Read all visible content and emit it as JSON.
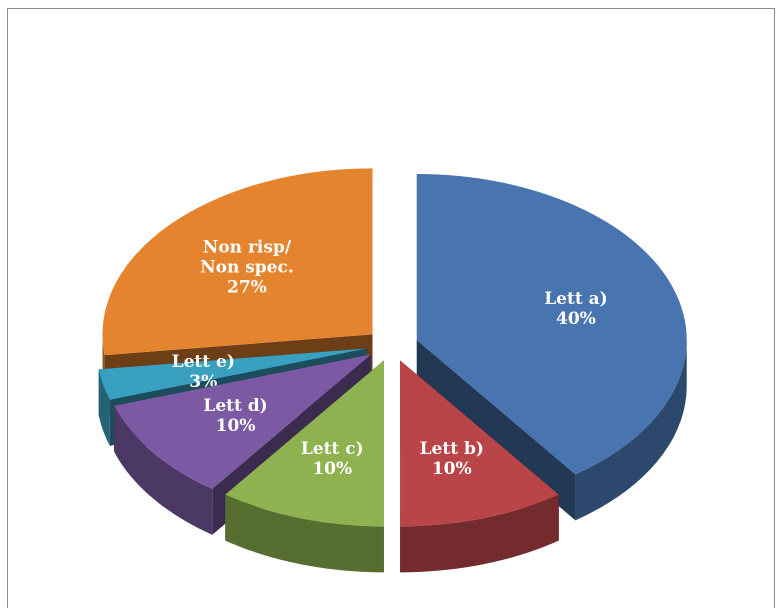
{
  "chart_data": {
    "type": "pie",
    "style": "3d-exploded",
    "title": "",
    "slices": [
      {
        "label_lines": [
          "Lett a)"
        ],
        "value": 40,
        "value_text": "40%",
        "color": "#4874b0"
      },
      {
        "label_lines": [
          "Lett b)"
        ],
        "value": 10,
        "value_text": "10%",
        "color": "#b94548"
      },
      {
        "label_lines": [
          "Lett c)"
        ],
        "value": 10,
        "value_text": "10%",
        "color": "#8db24f"
      },
      {
        "label_lines": [
          "Lett d)"
        ],
        "value": 10,
        "value_text": "10%",
        "color": "#7b5aa3"
      },
      {
        "label_lines": [
          "Lett e)"
        ],
        "value": 3,
        "value_text": "3%",
        "color": "#3aa0bf"
      },
      {
        "label_lines": [
          "Non risp/",
          "Non spec."
        ],
        "value": 27,
        "value_text": "27%",
        "color": "#e5842e"
      }
    ]
  }
}
